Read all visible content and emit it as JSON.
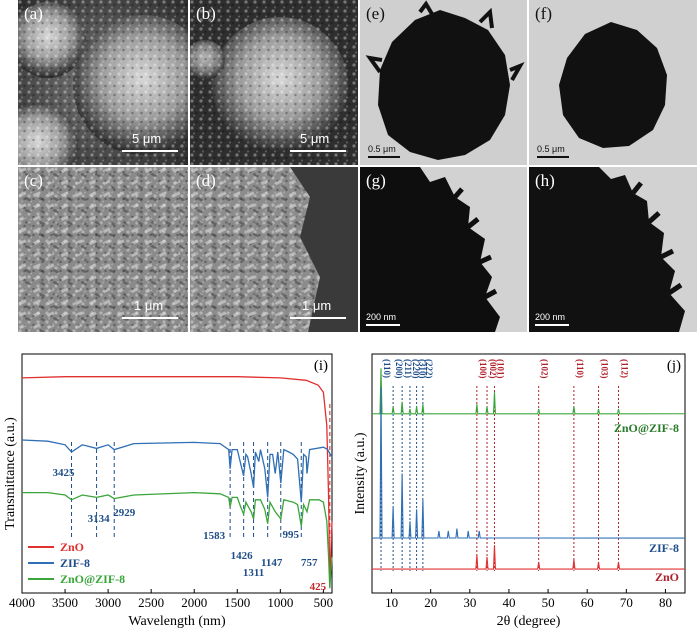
{
  "panels": {
    "a": {
      "letter": "(a)",
      "scale": "5 μm"
    },
    "b": {
      "letter": "(b)",
      "scale": "5 μm"
    },
    "c": {
      "letter": "(c)",
      "scale": "1 μm"
    },
    "d": {
      "letter": "(d)",
      "scale": "1 μm"
    },
    "e": {
      "letter": "(e)",
      "scale": "0.5 μm"
    },
    "f": {
      "letter": "(f)",
      "scale": "0.5 μm"
    },
    "g": {
      "letter": "(g)",
      "scale": "200 nm"
    },
    "h": {
      "letter": "(h)",
      "scale": "200 nm"
    }
  },
  "chart_data": [
    {
      "panel": "(i)",
      "type": "line",
      "xlabel": "Wavelength (nm)",
      "ylabel": "Transmittance (a.u.)",
      "xlim": [
        4000,
        400
      ],
      "xticks": [
        4000,
        3500,
        3000,
        2500,
        2000,
        1500,
        1000,
        500
      ],
      "legend_position": "bottom-left",
      "series": [
        {
          "name": "ZnO",
          "color": "#e03030",
          "points": [
            [
              4000,
              0.9
            ],
            [
              3500,
              0.905
            ],
            [
              3000,
              0.905
            ],
            [
              2500,
              0.905
            ],
            [
              2000,
              0.905
            ],
            [
              1500,
              0.905
            ],
            [
              1000,
              0.9
            ],
            [
              700,
              0.89
            ],
            [
              560,
              0.87
            ],
            [
              500,
              0.84
            ],
            [
              460,
              0.7
            ],
            [
              440,
              0.4
            ],
            [
              425,
              0.04
            ],
            [
              410,
              0.2
            ],
            [
              400,
              0.3
            ]
          ]
        },
        {
          "name": "ZIF-8",
          "color": "#2e6fb5",
          "points": [
            [
              4000,
              0.64
            ],
            [
              3700,
              0.635
            ],
            [
              3500,
              0.62
            ],
            [
              3425,
              0.59
            ],
            [
              3300,
              0.62
            ],
            [
              3134,
              0.605
            ],
            [
              3000,
              0.62
            ],
            [
              2929,
              0.6
            ],
            [
              2700,
              0.625
            ],
            [
              2000,
              0.63
            ],
            [
              1700,
              0.625
            ],
            [
              1600,
              0.6
            ],
            [
              1583,
              0.52
            ],
            [
              1560,
              0.6
            ],
            [
              1500,
              0.6
            ],
            [
              1460,
              0.54
            ],
            [
              1426,
              0.49
            ],
            [
              1400,
              0.58
            ],
            [
              1380,
              0.57
            ],
            [
              1340,
              0.5
            ],
            [
              1311,
              0.44
            ],
            [
              1290,
              0.59
            ],
            [
              1250,
              0.55
            ],
            [
              1230,
              0.6
            ],
            [
              1180,
              0.52
            ],
            [
              1147,
              0.4
            ],
            [
              1120,
              0.58
            ],
            [
              1090,
              0.58
            ],
            [
              1060,
              0.5
            ],
            [
              1030,
              0.59
            ],
            [
              995,
              0.46
            ],
            [
              960,
              0.6
            ],
            [
              900,
              0.59
            ],
            [
              850,
              0.58
            ],
            [
              800,
              0.56
            ],
            [
              757,
              0.38
            ],
            [
              730,
              0.58
            ],
            [
              700,
              0.57
            ],
            [
              690,
              0.5
            ],
            [
              660,
              0.6
            ],
            [
              500,
              0.61
            ],
            [
              450,
              0.6
            ],
            [
              420,
              0.58
            ],
            [
              400,
              0.57
            ]
          ]
        },
        {
          "name": "ZnO@ZIF-8",
          "color": "#3aa63a",
          "points": [
            [
              4000,
              0.42
            ],
            [
              3700,
              0.42
            ],
            [
              3500,
              0.41
            ],
            [
              3425,
              0.39
            ],
            [
              3300,
              0.41
            ],
            [
              3134,
              0.4
            ],
            [
              3000,
              0.41
            ],
            [
              2929,
              0.395
            ],
            [
              2700,
              0.41
            ],
            [
              2000,
              0.42
            ],
            [
              1700,
              0.415
            ],
            [
              1600,
              0.4
            ],
            [
              1583,
              0.36
            ],
            [
              1560,
              0.4
            ],
            [
              1500,
              0.4
            ],
            [
              1460,
              0.36
            ],
            [
              1426,
              0.33
            ],
            [
              1400,
              0.38
            ],
            [
              1340,
              0.34
            ],
            [
              1311,
              0.31
            ],
            [
              1290,
              0.39
            ],
            [
              1230,
              0.39
            ],
            [
              1180,
              0.35
            ],
            [
              1147,
              0.29
            ],
            [
              1120,
              0.38
            ],
            [
              1060,
              0.34
            ],
            [
              995,
              0.31
            ],
            [
              960,
              0.39
            ],
            [
              850,
              0.38
            ],
            [
              800,
              0.37
            ],
            [
              757,
              0.28
            ],
            [
              730,
              0.37
            ],
            [
              690,
              0.34
            ],
            [
              660,
              0.39
            ],
            [
              550,
              0.39
            ],
            [
              500,
              0.38
            ],
            [
              460,
              0.3
            ],
            [
              440,
              0.15
            ],
            [
              425,
              0.02
            ],
            [
              410,
              0.1
            ],
            [
              400,
              0.15
            ]
          ]
        }
      ],
      "annotations": [
        {
          "text": "3425",
          "x": 3425,
          "color": "#1f4e8a"
        },
        {
          "text": "3134",
          "x": 3134,
          "color": "#1f4e8a"
        },
        {
          "text": "2929",
          "x": 2929,
          "color": "#1f4e8a"
        },
        {
          "text": "1583",
          "x": 1583,
          "color": "#1f4e8a"
        },
        {
          "text": "1426",
          "x": 1426,
          "color": "#1f4e8a"
        },
        {
          "text": "1311",
          "x": 1311,
          "color": "#1f4e8a"
        },
        {
          "text": "1147",
          "x": 1147,
          "color": "#1f4e8a"
        },
        {
          "text": "995",
          "x": 995,
          "color": "#1f4e8a"
        },
        {
          "text": "757",
          "x": 757,
          "color": "#1f4e8a"
        },
        {
          "text": "425",
          "x": 425,
          "color": "#c0282d"
        }
      ]
    },
    {
      "panel": "(j)",
      "type": "line",
      "xlabel": "2θ (degree)",
      "ylabel": "Intensity (a.u.)",
      "xlim": [
        5,
        85
      ],
      "xticks": [
        10,
        20,
        30,
        40,
        50,
        60,
        70,
        80
      ],
      "series_labels": [
        "ZnO@ZIF-8",
        "ZIF-8",
        "ZnO"
      ],
      "series": [
        {
          "name": "ZnO@ZIF-8",
          "color": "#3aa63a",
          "baseline": 0.75,
          "peaks": [
            [
              7.3,
              0.19
            ],
            [
              10.4,
              0.03
            ],
            [
              12.7,
              0.05
            ],
            [
              14.7,
              0.02
            ],
            [
              16.4,
              0.03
            ],
            [
              18.0,
              0.04
            ],
            [
              31.8,
              0.04
            ],
            [
              34.4,
              0.03
            ],
            [
              36.3,
              0.09
            ],
            [
              47.6,
              0.02
            ],
            [
              56.6,
              0.03
            ],
            [
              62.9,
              0.02
            ],
            [
              68.0,
              0.02
            ]
          ]
        },
        {
          "name": "ZIF-8",
          "color": "#2e6fb5",
          "baseline": 0.23,
          "peaks": [
            [
              7.3,
              0.63
            ],
            [
              10.4,
              0.13
            ],
            [
              12.7,
              0.27
            ],
            [
              14.7,
              0.07
            ],
            [
              16.4,
              0.12
            ],
            [
              18.0,
              0.16
            ],
            [
              22.1,
              0.03
            ],
            [
              24.5,
              0.03
            ],
            [
              26.7,
              0.04
            ],
            [
              29.6,
              0.03
            ],
            [
              32.4,
              0.03
            ]
          ]
        },
        {
          "name": "ZnO",
          "color": "#e03030",
          "baseline": 0.1,
          "peaks": [
            [
              31.8,
              0.06
            ],
            [
              34.4,
              0.05
            ],
            [
              36.3,
              0.1
            ],
            [
              47.6,
              0.03
            ],
            [
              56.6,
              0.04
            ],
            [
              62.9,
              0.03
            ],
            [
              68.0,
              0.03
            ]
          ]
        }
      ],
      "reference_lines": [
        {
          "label": "(110)",
          "x": 7.3,
          "color": "#1f4e8a"
        },
        {
          "label": "(200)",
          "x": 10.4,
          "color": "#1f4e8a"
        },
        {
          "label": "(211)",
          "x": 12.7,
          "color": "#1f4e8a"
        },
        {
          "label": "(220)",
          "x": 14.7,
          "color": "#1f4e8a"
        },
        {
          "label": "(310)",
          "x": 16.4,
          "color": "#1f4e8a"
        },
        {
          "label": "(222)",
          "x": 18.0,
          "color": "#1f4e8a"
        },
        {
          "label": "(100)",
          "x": 31.8,
          "color": "#b0202a"
        },
        {
          "label": "(002)",
          "x": 34.4,
          "color": "#b0202a"
        },
        {
          "label": "(101)",
          "x": 36.3,
          "color": "#b0202a"
        },
        {
          "label": "(102)",
          "x": 47.6,
          "color": "#b0202a"
        },
        {
          "label": "(110)",
          "x": 56.6,
          "color": "#b0202a"
        },
        {
          "label": "(103)",
          "x": 62.9,
          "color": "#b0202a"
        },
        {
          "label": "(112)",
          "x": 68.0,
          "color": "#b0202a"
        }
      ]
    }
  ]
}
